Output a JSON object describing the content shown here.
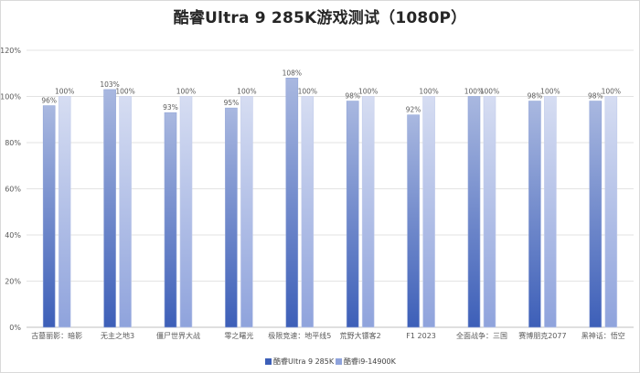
{
  "chart_data": {
    "type": "bar",
    "title": "酷睿Ultra 9 285K游戏测试（1080P）",
    "categories": [
      "古墓丽影：暗影",
      "无主之地3",
      "僵尸世界大战",
      "零之曙光",
      "极限竞速：地平线5",
      "荒野大镖客2",
      "F1 2023",
      "全面战争：三国",
      "赛博朋克2077",
      "黑神话：悟空"
    ],
    "series": [
      {
        "name": "酷睿Ultra 9 285K",
        "values": [
          96,
          103,
          93,
          95,
          108,
          98,
          92,
          100,
          98,
          98
        ],
        "labels": [
          "96%",
          "103%",
          "93%",
          "95%",
          "108%",
          "98%",
          "92%",
          "100%",
          "98%",
          "98%"
        ],
        "color_top": "#a9b8e0",
        "color_bottom": "#3d5fb8"
      },
      {
        "name": "酷睿i9-14900K",
        "values": [
          100,
          100,
          100,
          100,
          100,
          100,
          100,
          100,
          100,
          100
        ],
        "labels": [
          "100%",
          "100%",
          "100%",
          "100%",
          "100%",
          "100%",
          "100%",
          "100%",
          "100%",
          "100%"
        ],
        "color_top": "#d6ddf2",
        "color_bottom": "#8fa3dc"
      }
    ],
    "y_ticks": [
      "0%",
      "20%",
      "40%",
      "60%",
      "80%",
      "100%",
      "120%"
    ],
    "ylim": [
      0,
      120
    ],
    "grid": true,
    "legend": "bottom"
  }
}
